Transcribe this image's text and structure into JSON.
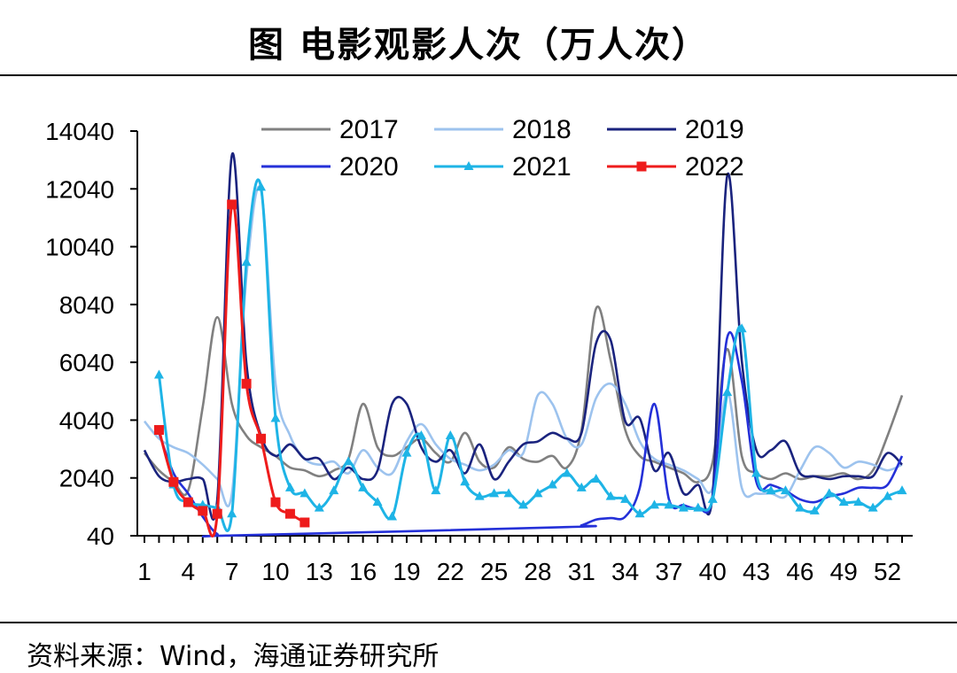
{
  "title": "图 电影观影人次（万人次）",
  "source": "资料来源：Wind，海通证券研究所",
  "chart_data": {
    "type": "line",
    "title": "图 电影观影人次（万人次）",
    "xlabel": "",
    "ylabel": "",
    "xlim": [
      1,
      53
    ],
    "ylim": [
      40,
      14040
    ],
    "yticks": [
      40,
      2040,
      4040,
      6040,
      8040,
      10040,
      12040,
      14040
    ],
    "xticks": [
      1,
      4,
      7,
      10,
      13,
      16,
      19,
      22,
      25,
      28,
      31,
      34,
      37,
      40,
      43,
      46,
      49,
      52
    ],
    "legend_position": "top",
    "series": [
      {
        "name": "2017",
        "color": "#808080",
        "marker": "none",
        "x": [
          1,
          2,
          3,
          4,
          5,
          6,
          7,
          8,
          9,
          10,
          11,
          12,
          13,
          14,
          15,
          16,
          17,
          18,
          19,
          20,
          21,
          22,
          23,
          24,
          25,
          26,
          27,
          28,
          29,
          30,
          31,
          32,
          33,
          34,
          35,
          36,
          37,
          38,
          39,
          40,
          41,
          42,
          43,
          44,
          45,
          46,
          47,
          48,
          49,
          50,
          51,
          52,
          53
        ],
        "y": [
          2900,
          2300,
          1900,
          1600,
          4500,
          7600,
          4600,
          3500,
          3100,
          2800,
          2400,
          2300,
          2100,
          2300,
          2700,
          4600,
          3100,
          2800,
          3100,
          3400,
          2900,
          2600,
          3600,
          2600,
          2400,
          3100,
          2700,
          2600,
          2800,
          2400,
          3700,
          7900,
          6100,
          3700,
          2800,
          2600,
          2400,
          2200,
          1900,
          2600,
          6500,
          2800,
          2200,
          2000,
          2200,
          2000,
          2100,
          2100,
          2200,
          2000,
          2300,
          3500,
          4900
        ]
      },
      {
        "name": "2018",
        "color": "#9dc3ee",
        "marker": "none",
        "x": [
          1,
          2,
          3,
          4,
          5,
          6,
          7,
          8,
          9,
          10,
          11,
          12,
          13,
          14,
          15,
          16,
          17,
          18,
          19,
          20,
          21,
          22,
          23,
          24,
          25,
          26,
          27,
          28,
          29,
          30,
          31,
          32,
          33,
          34,
          35,
          36,
          37,
          38,
          39,
          40,
          41,
          42,
          43,
          44,
          45,
          46,
          47,
          48,
          49,
          50,
          51,
          52,
          53
        ],
        "y": [
          4000,
          3400,
          3100,
          2900,
          2500,
          2000,
          1500,
          9000,
          12000,
          5300,
          3500,
          2700,
          2500,
          2600,
          2200,
          3000,
          2400,
          2200,
          3300,
          3900,
          3200,
          2700,
          2500,
          2300,
          2500,
          3000,
          2900,
          4900,
          4600,
          3400,
          3200,
          4800,
          5300,
          4600,
          3300,
          2700,
          2500,
          2300,
          2000,
          1700,
          5000,
          1700,
          1500,
          1500,
          1400,
          2300,
          3100,
          2900,
          2400,
          2600,
          2500,
          2300,
          2500
        ]
      },
      {
        "name": "2019",
        "color": "#1a237e",
        "marker": "none",
        "x": [
          1,
          2,
          3,
          4,
          5,
          6,
          7,
          8,
          9,
          10,
          11,
          12,
          13,
          14,
          15,
          16,
          17,
          18,
          19,
          20,
          21,
          22,
          23,
          24,
          25,
          26,
          27,
          28,
          29,
          30,
          31,
          32,
          33,
          34,
          35,
          36,
          37,
          38,
          39,
          40,
          41,
          42,
          43,
          44,
          45,
          46,
          47,
          48,
          49,
          50,
          51,
          52,
          53
        ],
        "y": [
          3000,
          2100,
          1900,
          2000,
          2000,
          1300,
          13200,
          6000,
          3500,
          2800,
          3200,
          2700,
          2700,
          2000,
          2400,
          2000,
          2300,
          4600,
          4600,
          3100,
          2600,
          3000,
          2200,
          3200,
          2000,
          2600,
          3200,
          3300,
          3600,
          3400,
          3600,
          6700,
          6800,
          4000,
          4100,
          2300,
          2900,
          1500,
          1800,
          1500,
          12500,
          6100,
          3000,
          3000,
          3300,
          2200,
          2100,
          2000,
          2100,
          2100,
          2100,
          2900,
          2500
        ]
      },
      {
        "name": "2020",
        "color": "#2430d8",
        "marker": "none",
        "x": [
          2,
          3,
          4,
          5,
          6,
          7,
          30,
          31,
          32,
          33,
          34,
          35,
          36,
          37,
          38,
          39,
          40,
          41,
          42,
          43,
          44,
          45,
          46,
          47,
          48,
          49,
          50,
          51,
          52,
          53
        ],
        "y": [
          3600,
          2200,
          1500,
          700,
          100,
          50,
          340,
          400,
          600,
          650,
          700,
          1700,
          4600,
          1300,
          1100,
          1000,
          1400,
          6900,
          5400,
          1900,
          1800,
          1600,
          1300,
          1200,
          1400,
          1500,
          1700,
          1700,
          1800,
          2800
        ]
      },
      {
        "name": "2021",
        "color": "#1eb4e6",
        "marker": "triangle",
        "x": [
          2,
          3,
          4,
          5,
          6,
          7,
          8,
          9,
          10,
          11,
          12,
          13,
          14,
          15,
          16,
          17,
          18,
          19,
          20,
          21,
          22,
          23,
          24,
          25,
          26,
          27,
          28,
          29,
          30,
          31,
          32,
          33,
          34,
          35,
          36,
          37,
          38,
          39,
          40,
          41,
          42,
          43,
          44,
          45,
          46,
          47,
          48,
          49,
          50,
          51,
          52,
          53
        ],
        "y": [
          5600,
          1800,
          1200,
          1100,
          1000,
          800,
          9500,
          12100,
          4100,
          1700,
          1500,
          1000,
          1600,
          2600,
          1700,
          1200,
          700,
          2900,
          3500,
          1600,
          3500,
          1900,
          1400,
          1500,
          1500,
          1100,
          1500,
          1800,
          2200,
          1700,
          2000,
          1400,
          1300,
          800,
          1100,
          1100,
          1000,
          1000,
          1300,
          5000,
          7200,
          2200,
          1600,
          1600,
          1000,
          900,
          1500,
          1200,
          1200,
          1000,
          1400,
          1600
        ]
      },
      {
        "name": "2022",
        "color": "#ee1c1c",
        "marker": "square",
        "x": [
          2,
          3,
          4,
          5,
          6,
          7,
          8,
          9,
          10,
          11,
          12
        ],
        "y": [
          3700,
          1900,
          1200,
          900,
          800,
          11500,
          5300,
          3400,
          1200,
          800,
          500
        ]
      }
    ]
  }
}
